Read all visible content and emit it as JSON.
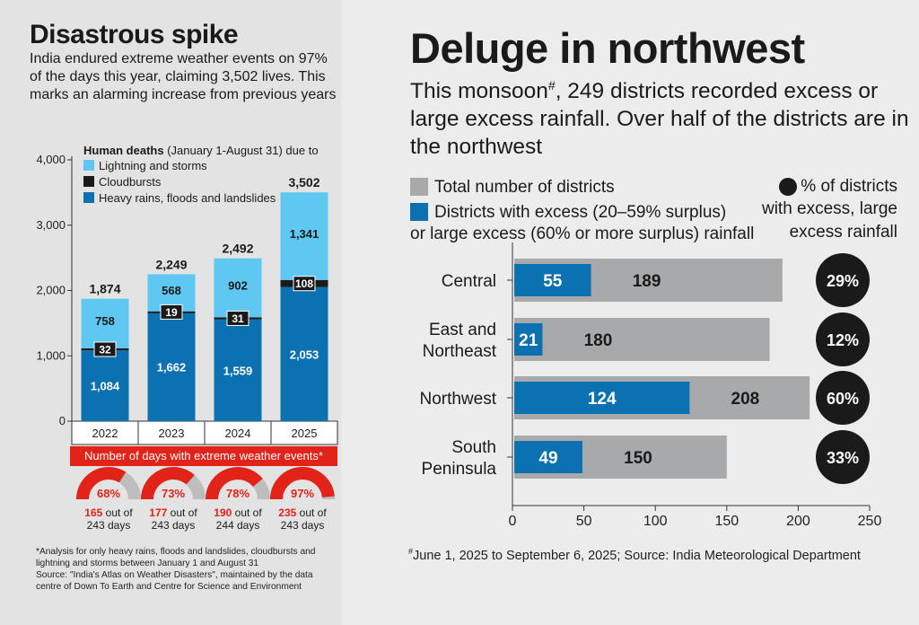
{
  "left": {
    "title": "Disastrous spike",
    "description": "India endured extreme weather events on 97% of the days this year, claiming 3,502 lives. This marks an alarming increase from previous years",
    "legend_title_bold": "Human deaths",
    "legend_title_rest": " (January 1-August 31) due to",
    "banner": "Number of days with extreme weather events*",
    "gauges": [
      {
        "pct": "68%",
        "fraction": 0.68,
        "days": "165",
        "rest": " out of",
        "of": "243 days"
      },
      {
        "pct": "73%",
        "fraction": 0.73,
        "days": "177",
        "rest": " out of",
        "of": "243 days"
      },
      {
        "pct": "78%",
        "fraction": 0.78,
        "days": "190",
        "rest": " out of",
        "of": "244 days"
      },
      {
        "pct": "97%",
        "fraction": 0.97,
        "days": "235",
        "rest": " out of",
        "of": "243 days"
      }
    ],
    "footnote1": "*Analysis for only heavy rains, floods and landslides, cloudbursts and lightning and storms between January 1 and August 31",
    "footnote2": "Source: \"India's Atlas on Weather Disasters\", maintained by the data centre of Down To Earth and Centre for Science and Environment"
  },
  "right": {
    "title": "Deluge in northwest",
    "description_pre": "This monsoon",
    "description_mark": "#",
    "description_post": ", 249 districts recorded excess or large excess rainfall. Over half of the districts are in the northwest",
    "legend_total": "Total number of districts",
    "legend_excess_1": "Districts with excess (20–59% surplus)",
    "legend_excess_2": "or large excess (60% or more surplus) rainfall",
    "legend_pct_1": "% of districts",
    "legend_pct_2": "with excess, large",
    "legend_pct_3": "excess rainfall",
    "footnote_mark": "#",
    "footnote": "June 1, 2025 to September 6, 2025; Source: India Meteorological Department"
  },
  "chart_data": [
    {
      "type": "bar",
      "stacked": true,
      "title": "Human deaths (January 1-August 31) due to",
      "categories": [
        "2022",
        "2023",
        "2024",
        "2025"
      ],
      "series": [
        {
          "name": "Heavy rains, floods and landslides",
          "values": [
            1084,
            1662,
            1559,
            2053
          ],
          "color": "#0c71b0"
        },
        {
          "name": "Cloudbursts",
          "values": [
            32,
            19,
            31,
            108
          ],
          "color": "#1a1a1a"
        },
        {
          "name": "Lightning and storms",
          "values": [
            758,
            568,
            902,
            1341
          ],
          "color": "#5ec8f2"
        }
      ],
      "totals": [
        1874,
        2249,
        2492,
        3502
      ],
      "total_labels": [
        "1,874",
        "2,249",
        "2,492",
        "3,502"
      ],
      "value_labels": [
        [
          "1,084",
          "1,662",
          "1,559",
          "2,053"
        ],
        [
          "32",
          "19",
          "31",
          "108"
        ],
        [
          "758",
          "568",
          "902",
          "1,341"
        ]
      ],
      "yticks": [
        0,
        1000,
        2000,
        3000,
        4000
      ],
      "ytick_labels": [
        "0",
        "1,000",
        "2,000",
        "3,000",
        "4,000"
      ],
      "ylim": [
        0,
        4000
      ],
      "legend": "top-left"
    },
    {
      "type": "bar",
      "orientation": "horizontal",
      "categories": [
        "Central",
        "East and Northeast",
        "Northwest",
        "South Peninsula"
      ],
      "category_lines": [
        [
          "Central"
        ],
        [
          "East and",
          "Northeast"
        ],
        [
          "Northwest"
        ],
        [
          "South",
          "Peninsula"
        ]
      ],
      "series": [
        {
          "name": "Total number of districts",
          "values": [
            189,
            180,
            208,
            150
          ],
          "color": "#a8a9ab"
        },
        {
          "name": "Districts with excess (20–59% surplus) or large excess (60% or more surplus) rainfall",
          "values": [
            55,
            21,
            124,
            49
          ],
          "color": "#0c71b0"
        }
      ],
      "percent_labels": [
        "29%",
        "12%",
        "60%",
        "33%"
      ],
      "xticks": [
        0,
        50,
        100,
        150,
        200,
        250
      ],
      "xlim": [
        0,
        250
      ],
      "legend": "top"
    }
  ]
}
